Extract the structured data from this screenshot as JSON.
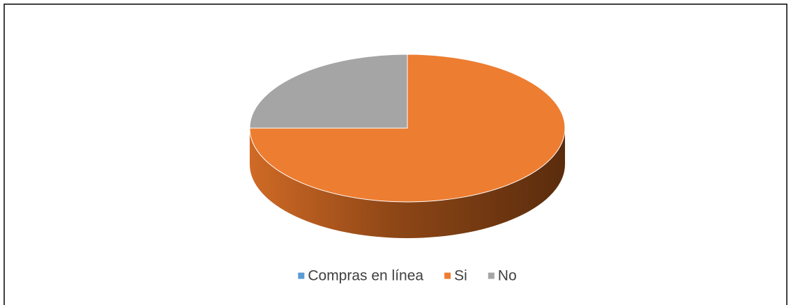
{
  "chart_data": {
    "type": "pie3d",
    "categories": [
      "Compras en línea",
      "Si",
      "No"
    ],
    "values": [
      0,
      75,
      25
    ],
    "colors": [
      "#5b9bd5",
      "#ed7d31",
      "#a5a5a5"
    ],
    "legend": "bottom"
  }
}
